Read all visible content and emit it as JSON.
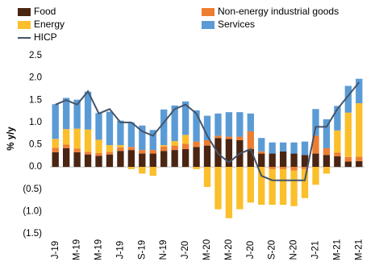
{
  "chart_data": {
    "type": "bar",
    "stacked": true,
    "y_label": "% y/y",
    "categories": [
      "J-19",
      null,
      "M-19",
      null,
      "M-19",
      null,
      "J-19",
      null,
      "S-19",
      null,
      "N-19",
      null,
      "J-20",
      null,
      "M-20",
      null,
      "M-20",
      null,
      "J-20",
      null,
      "S-20",
      null,
      "N-20",
      null,
      "J-21",
      null,
      "M-21",
      null,
      "M-21"
    ],
    "series": [
      {
        "name": "Food",
        "color": "#4a2512",
        "values": [
          0.33,
          0.42,
          0.33,
          0.28,
          0.25,
          0.28,
          0.36,
          0.38,
          0.3,
          0.3,
          0.36,
          0.38,
          0.4,
          0.45,
          0.48,
          0.65,
          0.63,
          0.6,
          0.4,
          0.3,
          0.3,
          0.35,
          0.3,
          0.27,
          0.3,
          0.27,
          0.24,
          0.12,
          0.13
        ]
      },
      {
        "name": "Non-energy industrial goods",
        "color": "#ed7d31",
        "values": [
          0.1,
          0.08,
          0.08,
          0.06,
          0.06,
          0.06,
          0.08,
          0.07,
          0.08,
          0.08,
          0.1,
          0.1,
          0.12,
          0.12,
          0.12,
          0.05,
          0.05,
          0.08,
          0.4,
          0.05,
          -0.05,
          -0.05,
          -0.08,
          -0.05,
          0.4,
          0.15,
          0.08,
          0.1,
          0.1
        ]
      },
      {
        "name": "Energy",
        "color": "#fbbf2c",
        "values": [
          0.2,
          0.35,
          0.45,
          0.5,
          0.3,
          0.15,
          0.05,
          -0.05,
          -0.15,
          -0.2,
          0.03,
          0.1,
          0.2,
          -0.05,
          -0.45,
          -0.95,
          -1.15,
          -0.95,
          -0.8,
          -0.85,
          -0.8,
          -0.8,
          -0.8,
          -0.65,
          -0.4,
          -0.15,
          0.5,
          1.0,
          1.2
        ]
      },
      {
        "name": "Services",
        "color": "#5b9bd5",
        "values": [
          0.78,
          0.7,
          0.65,
          0.85,
          0.6,
          0.75,
          0.55,
          0.55,
          0.55,
          0.45,
          0.8,
          0.8,
          0.75,
          0.7,
          0.55,
          0.5,
          0.55,
          0.55,
          0.4,
          0.3,
          0.25,
          0.2,
          0.25,
          0.3,
          0.6,
          0.65,
          0.55,
          0.6,
          0.55
        ]
      },
      {
        "name": "HICP",
        "color": "#44546a",
        "type": "line",
        "values": [
          1.4,
          1.5,
          1.4,
          1.7,
          1.2,
          1.3,
          1.0,
          1.0,
          0.8,
          0.7,
          1.0,
          1.3,
          1.4,
          1.2,
          0.7,
          0.3,
          0.1,
          0.3,
          0.4,
          -0.2,
          -0.3,
          -0.3,
          -0.3,
          -0.3,
          0.9,
          0.9,
          1.3,
          1.6,
          1.9
        ]
      }
    ],
    "ylim": [
      -1.5,
      2.5
    ],
    "yticks": [
      2.5,
      {
        "value": 2.0,
        "label": "2.0"
      },
      1.5,
      {
        "value": 1.0,
        "label": "1.0"
      },
      0.5,
      {
        "value": 0.0,
        "label": "0.0"
      },
      {
        "value": -0.5,
        "label": "(0.5)"
      },
      {
        "value": -1.0,
        "label": "(1.0)"
      },
      {
        "value": -1.5,
        "label": "(1.5)"
      }
    ]
  }
}
